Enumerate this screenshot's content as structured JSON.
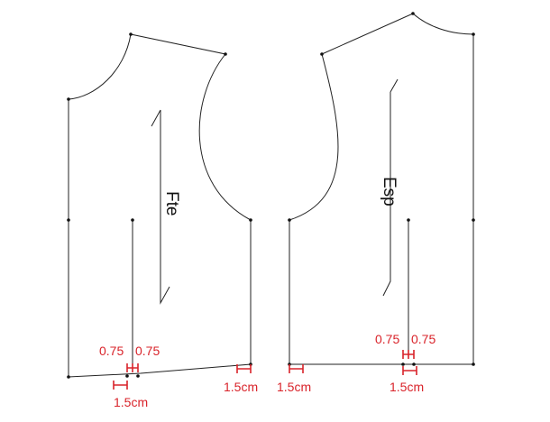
{
  "pieces": {
    "front": {
      "label": "Fte"
    },
    "back": {
      "label": "Esp"
    }
  },
  "dimensions": {
    "dart_half": "0.75",
    "dart_full": "1.5cm",
    "side_ease": "1.5cm"
  },
  "colors": {
    "outline": "#222222",
    "annotation": "#d9232a"
  }
}
